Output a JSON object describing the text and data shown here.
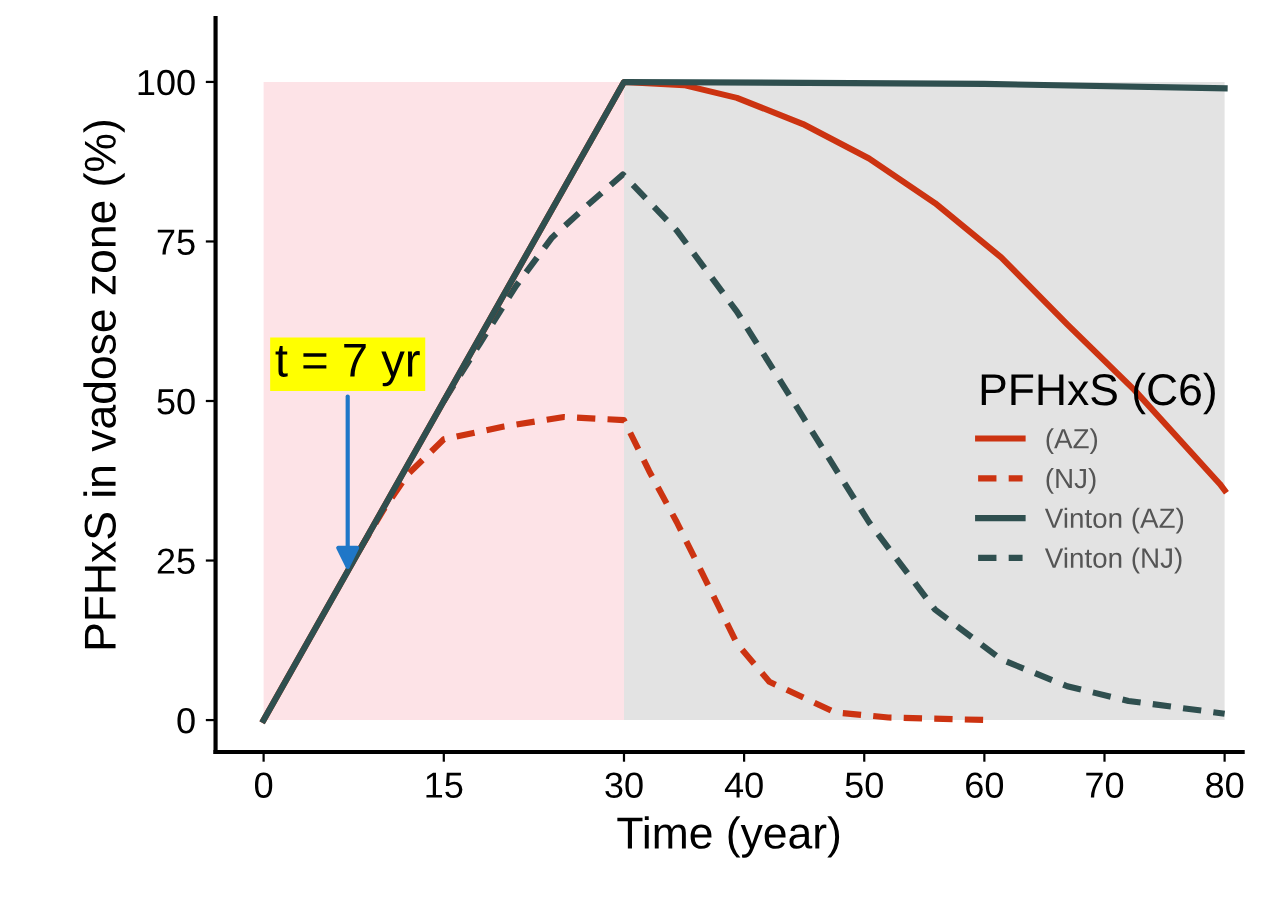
{
  "chart_data": {
    "type": "line",
    "xlabel": "Time (year)",
    "ylabel": "PFHxS in vadose zone (%)",
    "legend_title": "PFHxS (C6)",
    "xlim": [
      -4,
      81.5
    ],
    "ylim": [
      -5,
      110
    ],
    "xticks": [
      0,
      15,
      30,
      40,
      50,
      60,
      70,
      80
    ],
    "yticks": [
      0,
      25,
      50,
      75,
      100
    ],
    "bands": [
      {
        "axis": "x",
        "from": 0,
        "to": 30,
        "color": "#fde3e7"
      },
      {
        "axis": "x",
        "from": 30,
        "to": 80,
        "color": "#e3e3e3"
      }
    ],
    "annotations": [
      {
        "text": "t = 7 yr",
        "x": 7,
        "y": 23.3
      }
    ],
    "legend": "right",
    "grid": false,
    "marker": "none",
    "series": [
      {
        "name": "(AZ)",
        "color": "#cc3311",
        "line_style": "solid",
        "x": [
          0,
          30,
          35,
          39.4,
          44.9,
          50.4,
          55.9,
          61.4,
          66.9,
          72.5,
          79.6,
          80
        ],
        "values": [
          0,
          100,
          99.5,
          97.5,
          93.4,
          88,
          81,
          72.5,
          62,
          51.7,
          37,
          36
        ]
      },
      {
        "name": "(NJ)",
        "color": "#cc3311",
        "line_style": "dashed",
        "x": [
          8,
          10,
          12,
          15,
          20,
          25,
          30,
          32.1,
          34.4,
          37.2,
          39.4,
          42.1,
          47.6,
          52,
          60.5
        ],
        "values": [
          26.7,
          33,
          38.5,
          44,
          46,
          47.5,
          47,
          39,
          31,
          20.4,
          12,
          6,
          1.2,
          0.4,
          0
        ]
      },
      {
        "name": "Vinton (AZ)",
        "color": "#2f4f4f",
        "line_style": "solid",
        "x": [
          0,
          30,
          60,
          80
        ],
        "values": [
          0,
          100,
          99.7,
          99
        ]
      },
      {
        "name": "Vinton (NJ)",
        "color": "#2f4f4f",
        "line_style": "dashed",
        "x": [
          15,
          18,
          21,
          24,
          27.1,
          29.9,
          34.4,
          39.4,
          44.9,
          50.4,
          55.9,
          61.4,
          66.9,
          72,
          80
        ],
        "values": [
          50,
          59,
          68,
          75.6,
          80.9,
          85.5,
          76.7,
          64,
          47.5,
          31,
          17.3,
          9.5,
          5.3,
          3,
          1
        ]
      }
    ]
  }
}
